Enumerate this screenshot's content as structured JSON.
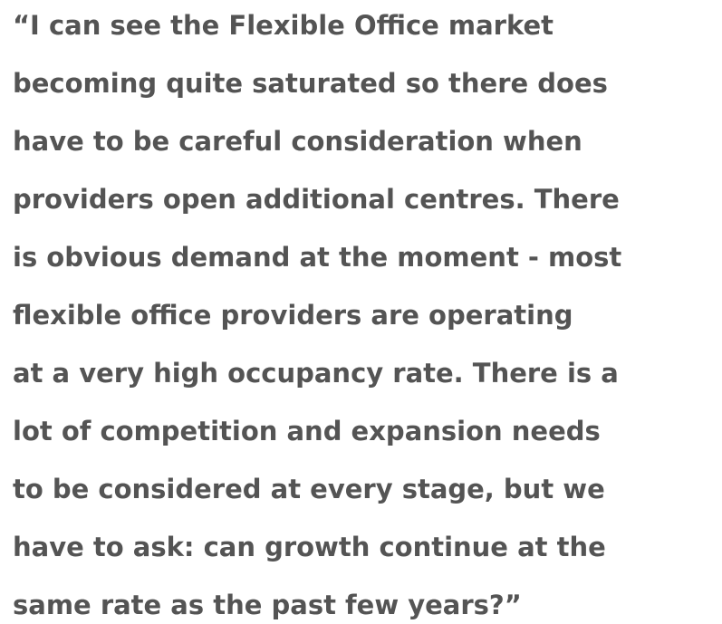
{
  "quote": {
    "lines": [
      "“I can see the Flexible Office market",
      "becoming quite saturated so there does",
      "have to be careful consideration when",
      "providers open additional centres. There",
      "is obvious demand at the moment - most",
      "flexible office providers are operating",
      "at a very high occupancy rate. There is a",
      "lot of competition and expansion needs",
      "to be considered at every stage, but we",
      "have to ask: can growth continue at the",
      "same rate as the past few years?”"
    ]
  }
}
